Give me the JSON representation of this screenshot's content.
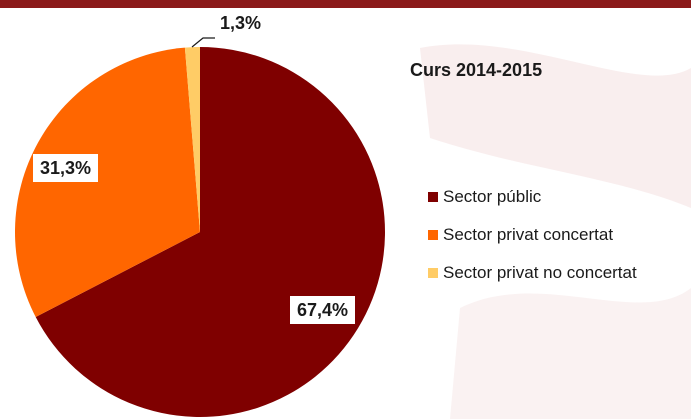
{
  "chart_data": {
    "type": "pie",
    "title": "Curs 2014-2015",
    "categories": [
      "Sector públic",
      "Sector privat concertat",
      "Sector privat no concertat"
    ],
    "values": [
      67.4,
      31.3,
      1.3
    ],
    "data_labels": [
      "67,4%",
      "31,3%",
      "1,3%"
    ],
    "colors": [
      "#7f0000",
      "#ff6600",
      "#ffcc66"
    ],
    "legend_position": "right"
  }
}
